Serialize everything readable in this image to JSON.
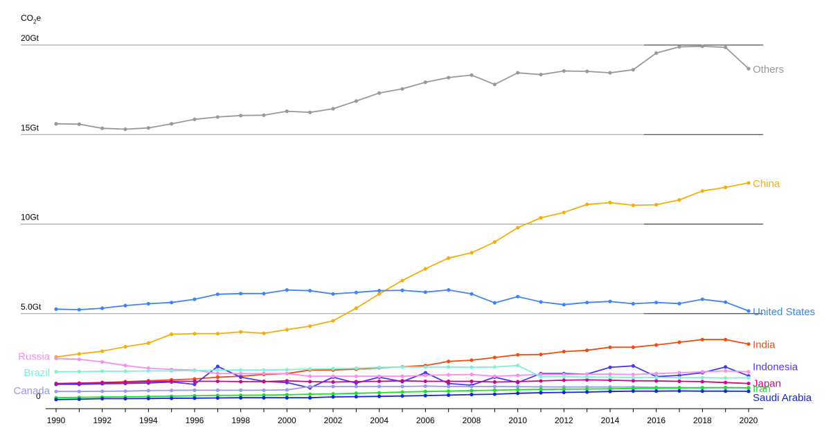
{
  "chart_data": {
    "type": "line",
    "ylabel": "CO2e",
    "ylabel_main": "CO",
    "ylabel_sub": "2",
    "ylabel_suffix": "e",
    "ylim": [
      0,
      20
    ],
    "grid": true,
    "x": [
      1990,
      1991,
      1992,
      1993,
      1994,
      1995,
      1996,
      1997,
      1998,
      1999,
      2000,
      2001,
      2002,
      2003,
      2004,
      2005,
      2006,
      2007,
      2008,
      2009,
      2010,
      2011,
      2012,
      2013,
      2014,
      2015,
      2016,
      2017,
      2018,
      2019,
      2020
    ],
    "x_tick_labels": [
      "1990",
      "1992",
      "1994",
      "1996",
      "1998",
      "2000",
      "2002",
      "2004",
      "2006",
      "2008",
      "2010",
      "2012",
      "2014",
      "2016",
      "2018",
      "2020"
    ],
    "y_ticks": [
      {
        "value": 0,
        "label": "0"
      },
      {
        "value": 5,
        "label": "5.0Gt"
      },
      {
        "value": 10,
        "label": "10Gt"
      },
      {
        "value": 15,
        "label": "15Gt"
      },
      {
        "value": 20,
        "label": "20Gt"
      }
    ],
    "series": [
      {
        "name": "Others",
        "color": "#999999",
        "label_side": "right",
        "values": [
          15.6,
          15.58,
          15.35,
          15.3,
          15.37,
          15.6,
          15.85,
          15.98,
          16.06,
          16.08,
          16.3,
          16.24,
          16.44,
          16.87,
          17.32,
          17.55,
          17.92,
          18.18,
          18.32,
          17.8,
          18.45,
          18.35,
          18.55,
          18.53,
          18.45,
          18.62,
          19.55,
          19.9,
          19.93,
          19.87,
          18.68
        ]
      },
      {
        "name": "China",
        "color": "#f5ad0c",
        "label_side": "right",
        "values": [
          2.58,
          2.75,
          2.9,
          3.15,
          3.35,
          3.85,
          3.88,
          3.88,
          3.98,
          3.9,
          4.1,
          4.3,
          4.6,
          5.3,
          6.1,
          6.85,
          7.5,
          8.1,
          8.4,
          9.0,
          9.8,
          10.35,
          10.65,
          11.1,
          11.2,
          11.05,
          11.08,
          11.35,
          11.85,
          12.05,
          12.3
        ]
      },
      {
        "name": "United States",
        "color": "#3d85ef",
        "label_side": "right",
        "values": [
          5.25,
          5.22,
          5.3,
          5.45,
          5.55,
          5.62,
          5.8,
          6.08,
          6.12,
          6.12,
          6.32,
          6.28,
          6.1,
          6.18,
          6.28,
          6.3,
          6.2,
          6.32,
          6.1,
          5.6,
          5.95,
          5.65,
          5.5,
          5.62,
          5.68,
          5.55,
          5.62,
          5.56,
          5.8,
          5.64,
          5.15
        ]
      },
      {
        "name": "India",
        "color": "#ee4d10",
        "label_side": "right",
        "values": [
          1.05,
          1.1,
          1.15,
          1.2,
          1.25,
          1.3,
          1.35,
          1.45,
          1.5,
          1.6,
          1.65,
          1.85,
          1.85,
          1.9,
          1.97,
          2.03,
          2.1,
          2.33,
          2.4,
          2.55,
          2.7,
          2.72,
          2.88,
          2.95,
          3.12,
          3.12,
          3.25,
          3.4,
          3.55,
          3.55,
          3.3
        ]
      },
      {
        "name": "Indonesia",
        "color": "#4b38ea",
        "label_side": "right",
        "values": [
          1.05,
          1.05,
          1.08,
          1.1,
          1.12,
          1.18,
          1.05,
          2.05,
          1.45,
          1.22,
          1.15,
          0.85,
          1.45,
          1.12,
          1.45,
          1.2,
          1.7,
          1.1,
          1.0,
          1.45,
          1.15,
          1.65,
          1.65,
          1.62,
          2.0,
          2.08,
          1.48,
          1.55,
          1.7,
          2.02,
          1.52
        ]
      },
      {
        "name": "Japan",
        "color": "#c70987",
        "label_side": "right",
        "values": [
          1.1,
          1.12,
          1.15,
          1.17,
          1.2,
          1.22,
          1.22,
          1.22,
          1.2,
          1.2,
          1.25,
          1.2,
          1.18,
          1.2,
          1.22,
          1.25,
          1.22,
          1.22,
          1.22,
          1.18,
          1.2,
          1.24,
          1.28,
          1.3,
          1.28,
          1.25,
          1.24,
          1.22,
          1.2,
          1.15,
          1.1
        ]
      },
      {
        "name": "Russia",
        "color": "#f68ff1",
        "label_side": "left",
        "values": [
          2.5,
          2.45,
          2.3,
          2.1,
          1.95,
          1.88,
          1.85,
          1.65,
          1.65,
          1.65,
          1.65,
          1.5,
          1.5,
          1.5,
          1.5,
          1.5,
          1.55,
          1.58,
          1.6,
          1.5,
          1.55,
          1.6,
          1.6,
          1.62,
          1.62,
          1.6,
          1.65,
          1.7,
          1.75,
          1.8,
          1.75
        ]
      },
      {
        "name": "Brazil",
        "color": "#7ef0d6",
        "label_side": "left",
        "values": [
          1.75,
          1.76,
          1.78,
          1.78,
          1.8,
          1.8,
          1.82,
          1.85,
          1.85,
          1.85,
          1.87,
          1.9,
          1.92,
          1.95,
          2.0,
          2.02,
          2.02,
          2.02,
          2.0,
          2.02,
          2.1,
          1.48,
          1.48,
          1.46,
          1.45,
          1.43,
          1.44,
          1.42,
          1.42,
          1.41,
          1.42
        ]
      },
      {
        "name": "Canada",
        "color": "#9c95f1",
        "label_side": "left",
        "values": [
          0.65,
          0.65,
          0.66,
          0.67,
          0.7,
          0.71,
          0.72,
          0.72,
          0.72,
          0.72,
          0.74,
          0.93,
          0.93,
          0.93,
          0.93,
          0.93,
          0.95,
          0.93,
          0.93,
          0.93,
          0.92,
          0.91,
          0.9,
          0.9,
          0.9,
          0.9,
          0.88,
          0.87,
          0.86,
          0.86,
          0.85
        ]
      },
      {
        "name": "Iran",
        "color": "#18e322",
        "label_side": "right",
        "values": [
          0.3,
          0.32,
          0.34,
          0.35,
          0.37,
          0.39,
          0.41,
          0.43,
          0.44,
          0.45,
          0.47,
          0.5,
          0.52,
          0.55,
          0.58,
          0.62,
          0.65,
          0.67,
          0.7,
          0.72,
          0.75,
          0.77,
          0.78,
          0.79,
          0.8,
          0.82,
          0.84,
          0.85,
          0.86,
          0.87,
          0.86
        ]
      },
      {
        "name": "Saudi Arabia",
        "color": "#1426d7",
        "label_side": "right",
        "values": [
          0.2,
          0.22,
          0.25,
          0.25,
          0.26,
          0.27,
          0.28,
          0.29,
          0.3,
          0.3,
          0.3,
          0.3,
          0.35,
          0.36,
          0.38,
          0.4,
          0.42,
          0.45,
          0.48,
          0.5,
          0.55,
          0.58,
          0.6,
          0.62,
          0.65,
          0.67,
          0.67,
          0.68,
          0.67,
          0.67,
          0.66
        ]
      }
    ]
  }
}
